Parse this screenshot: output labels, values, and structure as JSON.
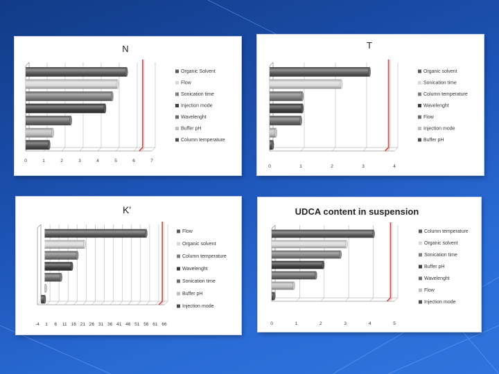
{
  "chart_data": [
    {
      "type": "bar",
      "title": "N",
      "legend_position": "right",
      "categories": [
        "Organic Solvent",
        "Flow",
        "Sonication time",
        "Injection mode",
        "Wavelenght",
        "Buffer pH",
        "Column temperature"
      ],
      "values": [
        5.6,
        5.1,
        4.8,
        4.4,
        2.5,
        1.5,
        1.3
      ],
      "xticks": [
        "0",
        "1",
        "2",
        "3",
        "4",
        "5",
        "6",
        "7"
      ],
      "xlim": [
        0,
        7
      ],
      "reference_line": 6.3,
      "colors": [
        "#595959",
        "#d9d9d9",
        "#7f7f7f",
        "#3f3f3f",
        "#6b6b6b",
        "#bfbfbf",
        "#4d4d4d"
      ]
    },
    {
      "type": "bar",
      "title": "T",
      "legend_position": "right",
      "categories": [
        "Organic solvent",
        "Sonication time",
        "Column temperature",
        "Wavelenght",
        "Flow",
        "Injection mode",
        "Buffer pH"
      ],
      "values": [
        3.2,
        2.3,
        1.05,
        1.05,
        1.0,
        0.2,
        0.1
      ],
      "xticks": [
        "0",
        "1",
        "2",
        "3",
        "4"
      ],
      "xlim": [
        0,
        4
      ],
      "reference_line": 3.7,
      "colors": [
        "#595959",
        "#d9d9d9",
        "#7f7f7f",
        "#3f3f3f",
        "#6b6b6b",
        "#bfbfbf",
        "#4d4d4d"
      ]
    },
    {
      "type": "bar",
      "title": "K'",
      "legend_position": "right",
      "categories": [
        "Flow",
        "Organic solvent",
        "Column temperature",
        "Wavelenght",
        "Sonication time",
        "Buffer pH",
        "Injection mode"
      ],
      "values": [
        56,
        22,
        18,
        15,
        9,
        0.5,
        -2
      ],
      "xticks": [
        "-4",
        "1",
        "6",
        "11",
        "16",
        "21",
        "26",
        "31",
        "36",
        "41",
        "46",
        "51",
        "56",
        "61",
        "66"
      ],
      "xlim": [
        -4,
        66
      ],
      "reference_line": 63,
      "colors": [
        "#595959",
        "#d9d9d9",
        "#7f7f7f",
        "#3f3f3f",
        "#6b6b6b",
        "#bfbfbf",
        "#4d4d4d"
      ]
    },
    {
      "type": "bar",
      "title": "UDCA content in suspension",
      "legend_position": "right",
      "categories": [
        "Column temperature",
        "Organic solvent",
        "Sonication time",
        "Buffer pH",
        "Wavelenght",
        "Flow",
        "Injection mode"
      ],
      "values": [
        4.15,
        3.05,
        2.8,
        2.1,
        1.8,
        0.9,
        0.1
      ],
      "xticks": [
        "0",
        "1",
        "2",
        "3",
        "4",
        "5"
      ],
      "xlim": [
        0,
        5
      ],
      "reference_line": 4.7,
      "colors": [
        "#595959",
        "#d9d9d9",
        "#7f7f7f",
        "#3f3f3f",
        "#6b6b6b",
        "#bfbfbf",
        "#4d4d4d"
      ]
    }
  ]
}
